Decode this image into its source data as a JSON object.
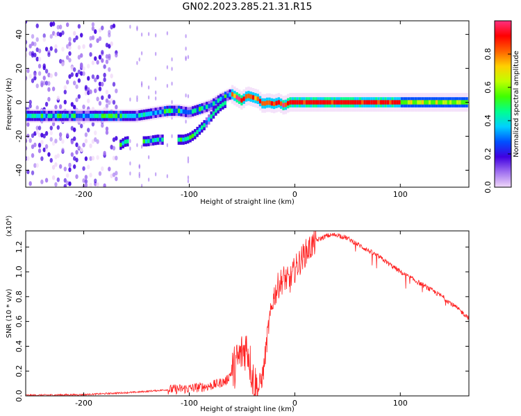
{
  "figure": {
    "title": "GN02.2023.285.21.31.R15"
  },
  "chart_data": [
    {
      "type": "heatmap",
      "title": "GN02.2023.285.21.31.R15",
      "xlabel": "Height of straight line (km)",
      "ylabel": "Frequency (Hz)",
      "xlim": [
        -255,
        165
      ],
      "ylim": [
        -50,
        48
      ],
      "x_ticks": [
        -200,
        -100,
        0,
        100
      ],
      "x_tick_labels": [
        "-200",
        "-100",
        "0",
        "100"
      ],
      "y_ticks": [
        -40,
        -20,
        0,
        20,
        40
      ],
      "y_tick_labels": [
        "-40",
        "-20",
        "0",
        "20",
        "40"
      ],
      "colorbar": {
        "label": "Normalized spectral amplitude",
        "range": [
          0,
          1
        ],
        "ticks": [
          0,
          0.2,
          0.4,
          0.6,
          0.8
        ],
        "tick_labels": [
          "0.0",
          "0.2",
          "0.4",
          "0.6",
          "0.8"
        ],
        "colormap": [
          "#f0d8f8",
          "#a070f0",
          "#4000e0",
          "#0050ff",
          "#00d0ff",
          "#00ff90",
          "#40ff00",
          "#c0ff00",
          "#ffd000",
          "#ff6000",
          "#ff0000",
          "#ff3080"
        ]
      },
      "track": {
        "x": [
          -165,
          -150,
          -140,
          -130,
          -120,
          -110,
          -100,
          -90,
          -80,
          -70,
          -60,
          -50,
          -45,
          -40,
          -35,
          -30,
          -25,
          -20,
          -15,
          -10,
          -5,
          0,
          50,
          100,
          165
        ],
        "y": [
          -8,
          -8,
          -7,
          -6,
          -5,
          -5,
          -6,
          -4,
          -2,
          2,
          5,
          1,
          4,
          3,
          2,
          -1,
          0,
          -1,
          0,
          -2,
          0,
          0,
          0,
          0,
          0
        ]
      },
      "secondary_track": {
        "x": [
          -165,
          -160,
          -140,
          -130,
          -120,
          -105,
          -100,
          -95,
          -90,
          -85,
          -80,
          -75,
          -70,
          -65
        ],
        "y": [
          -25,
          -23,
          -23,
          -22,
          -22,
          -22,
          -21,
          -19,
          -16,
          -13,
          -9,
          -5,
          -2,
          0
        ]
      }
    },
    {
      "type": "line",
      "xlabel": "Height of straight line (km)",
      "ylabel": "SNR (10 * v/v)",
      "y_multiplier_label": "(x10⁴)",
      "xlim": [
        -255,
        165
      ],
      "ylim": [
        0,
        1.33
      ],
      "x_ticks": [
        -200,
        -100,
        0,
        100
      ],
      "x_tick_labels": [
        "-200",
        "-100",
        "0",
        "100"
      ],
      "y_ticks": [
        0,
        0.2,
        0.4,
        0.6,
        0.8,
        1.0,
        1.2
      ],
      "y_tick_labels": [
        "0.0",
        "0.2",
        "0.4",
        "0.6",
        "0.8",
        "1.0",
        "1.2"
      ],
      "series": [
        {
          "color": "#ff2020",
          "x": [
            -255,
            -200,
            -150,
            -120,
            -100,
            -80,
            -65,
            -58,
            -50,
            -45,
            -40,
            -35,
            -30,
            -25,
            -20,
            -15,
            -10,
            -5,
            0,
            10,
            20,
            30,
            40,
            50,
            60,
            80,
            100,
            120,
            140,
            165
          ],
          "y": [
            0.005,
            0.01,
            0.03,
            0.05,
            0.06,
            0.08,
            0.12,
            0.22,
            0.35,
            0.4,
            0.15,
            0.04,
            0.18,
            0.55,
            0.8,
            0.9,
            0.95,
            0.92,
            1.02,
            1.15,
            1.25,
            1.29,
            1.3,
            1.27,
            1.22,
            1.12,
            1.0,
            0.9,
            0.8,
            0.63
          ]
        }
      ]
    }
  ]
}
